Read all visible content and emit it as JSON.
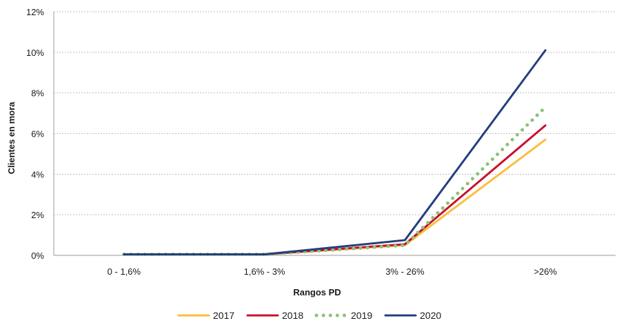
{
  "chart_data": {
    "type": "line",
    "title": "",
    "xlabel": "Rangos PD",
    "ylabel": "Clientes en mora",
    "categories": [
      "0 - 1,6%",
      "1,6% - 3%",
      "3% - 26%",
      ">26%"
    ],
    "ylim": [
      0,
      12
    ],
    "y_ticks": [
      0,
      2,
      4,
      6,
      8,
      10,
      12
    ],
    "y_tick_labels": [
      "0%",
      "2%",
      "4%",
      "6%",
      "8%",
      "10%",
      "12%"
    ],
    "grid": "horizontal dotted",
    "legend_position": "bottom",
    "series": [
      {
        "name": "2017",
        "values": [
          0.05,
          0.05,
          0.5,
          5.7
        ],
        "color": "#F9BF3B",
        "style": "solid"
      },
      {
        "name": "2018",
        "values": [
          0.05,
          0.05,
          0.55,
          6.4
        ],
        "color": "#C8102E",
        "style": "solid"
      },
      {
        "name": "2019",
        "values": [
          0.05,
          0.05,
          0.5,
          7.3
        ],
        "color": "#8DC07A",
        "style": "dotted"
      },
      {
        "name": "2020",
        "values": [
          0.05,
          0.05,
          0.75,
          10.1
        ],
        "color": "#243F7A",
        "style": "solid"
      }
    ]
  }
}
